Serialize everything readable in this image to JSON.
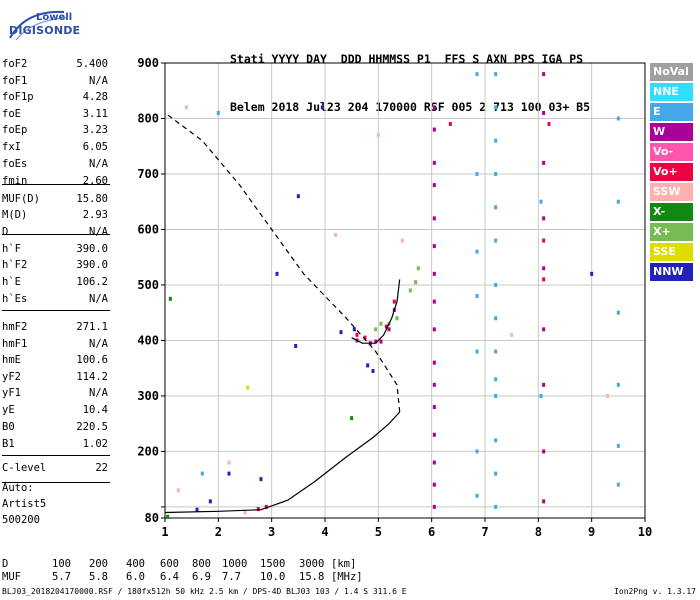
{
  "logo": {
    "line1": "Lowell",
    "line2": "DIGISONDE"
  },
  "header": {
    "line1": "Stati YYYY DAY  DDD HHMMSS P1  FFS S AXN PPS IGA PS",
    "line2": "Belem 2018 Jul23 204 170000 RSF 005 2 713 100 03+ B5"
  },
  "params": [
    {
      "name": "foF2",
      "value": "5.400"
    },
    {
      "name": "foF1",
      "value": "N/A"
    },
    {
      "name": "foF1p",
      "value": "4.28"
    },
    {
      "name": "foE",
      "value": "3.11"
    },
    {
      "name": "foEp",
      "value": "3.23"
    },
    {
      "name": "fxI",
      "value": "6.05"
    },
    {
      "name": "foEs",
      "value": "N/A"
    },
    {
      "name": "fmin",
      "value": "2.60"
    },
    {
      "name": "MUF(D)",
      "value": "15.80"
    },
    {
      "name": "M(D)",
      "value": "2.93"
    },
    {
      "name": "D",
      "value": "N/A"
    },
    {
      "name": "h`F",
      "value": "390.0"
    },
    {
      "name": "h`F2",
      "value": "390.0"
    },
    {
      "name": "h`E",
      "value": "106.2"
    },
    {
      "name": "h`Es",
      "value": "N/A"
    },
    {
      "name": "hmF2",
      "value": "271.1"
    },
    {
      "name": "hmF1",
      "value": "N/A"
    },
    {
      "name": "hmE",
      "value": "100.6"
    },
    {
      "name": "yF2",
      "value": "114.2"
    },
    {
      "name": "yF1",
      "value": "N/A"
    },
    {
      "name": "yE",
      "value": "10.4"
    },
    {
      "name": "B0",
      "value": "220.5"
    },
    {
      "name": "B1",
      "value": "1.02"
    },
    {
      "name": "C-level",
      "value": "22"
    }
  ],
  "auto": {
    "line1": "Auto:",
    "line2": "Artist5",
    "line3": "500200"
  },
  "muf_table": {
    "d_label": "D",
    "d_values": [
      "100",
      "200",
      "400",
      "600",
      "800",
      "1000",
      "1500",
      "3000"
    ],
    "d_unit": "[km]",
    "muf_label": "MUF",
    "muf_values": [
      "5.7",
      "5.8",
      "6.0",
      "6.4",
      "6.9",
      "7.7",
      "10.0",
      "15.8"
    ],
    "muf_unit": "[MHz]"
  },
  "footer": {
    "left": "BLJ03_2018204170000.RSF / 180fx512h 50 kHz 2.5 km / DPS-4D BLJ03 103 / 1.4 S 311.6 E",
    "right": "Ion2Png v. 1.3.17"
  },
  "legend": [
    {
      "label": "NoVal",
      "color": "#a0a0a0"
    },
    {
      "label": "NNE",
      "color": "#33ddff"
    },
    {
      "label": "E",
      "color": "#44a8e8"
    },
    {
      "label": "W",
      "color": "#aa0099"
    },
    {
      "label": "Vo-",
      "color": "#ff55aa"
    },
    {
      "label": "Vo+",
      "color": "#ee0044"
    },
    {
      "label": "SSW",
      "color": "#ffb0b0"
    },
    {
      "label": "X-",
      "color": "#118811"
    },
    {
      "label": "X+",
      "color": "#77bb55"
    },
    {
      "label": "SSE",
      "color": "#dddd00"
    },
    {
      "label": "NNW",
      "color": "#2222bb"
    }
  ],
  "chart_data": {
    "type": "scatter",
    "title": "",
    "xlabel": "",
    "ylabel": "",
    "xlim": [
      1,
      10
    ],
    "ylim": [
      80,
      900
    ],
    "x_ticks": [
      1,
      2,
      3,
      4,
      5,
      6,
      7,
      8,
      9,
      10
    ],
    "y_ticks": [
      80,
      100,
      200,
      300,
      400,
      500,
      600,
      700,
      800,
      900
    ],
    "y_tick_labels": [
      "80",
      "",
      "200",
      "300",
      "400",
      "500",
      "600",
      "700",
      "800",
      "900"
    ],
    "grid": true,
    "profile_solid": [
      [
        1.0,
        90
      ],
      [
        2.0,
        92
      ],
      [
        2.8,
        95
      ],
      [
        3.3,
        112
      ],
      [
        3.8,
        145
      ],
      [
        4.4,
        190
      ],
      [
        4.9,
        225
      ],
      [
        5.2,
        250
      ],
      [
        5.4,
        271
      ]
    ],
    "profile_dashed": [
      [
        5.4,
        271
      ],
      [
        5.35,
        320
      ],
      [
        4.95,
        380
      ],
      [
        4.4,
        440
      ],
      [
        3.6,
        520
      ],
      [
        3.0,
        600
      ],
      [
        2.4,
        680
      ],
      [
        1.7,
        760
      ],
      [
        1.0,
        810
      ]
    ],
    "trace_o": [
      [
        4.5,
        405
      ],
      [
        4.7,
        395
      ],
      [
        4.95,
        395
      ],
      [
        5.1,
        410
      ],
      [
        5.25,
        440
      ],
      [
        5.35,
        470
      ],
      [
        5.4,
        510
      ]
    ],
    "series": [
      {
        "color": "#aa0099",
        "points": [
          [
            6.05,
            100
          ],
          [
            6.05,
            140
          ],
          [
            6.05,
            180
          ],
          [
            6.05,
            230
          ],
          [
            6.05,
            280
          ],
          [
            6.05,
            320
          ],
          [
            6.05,
            360
          ],
          [
            6.05,
            420
          ],
          [
            6.05,
            470
          ],
          [
            6.05,
            520
          ],
          [
            6.05,
            570
          ],
          [
            6.05,
            620
          ],
          [
            6.05,
            680
          ],
          [
            6.05,
            720
          ],
          [
            6.05,
            780
          ],
          [
            6.05,
            820
          ],
          [
            8.1,
            110
          ],
          [
            8.1,
            200
          ],
          [
            8.1,
            320
          ],
          [
            8.1,
            420
          ],
          [
            8.1,
            530
          ],
          [
            8.1,
            620
          ],
          [
            8.1,
            720
          ],
          [
            8.1,
            810
          ],
          [
            8.1,
            880
          ],
          [
            4.6,
            400
          ],
          [
            4.85,
            395
          ],
          [
            5.05,
            398
          ],
          [
            5.2,
            420
          ],
          [
            5.3,
            455
          ]
        ]
      },
      {
        "color": "#44a8e8",
        "points": [
          [
            7.2,
            100
          ],
          [
            7.2,
            160
          ],
          [
            7.2,
            220
          ],
          [
            7.2,
            300
          ],
          [
            7.2,
            330
          ],
          [
            7.2,
            380
          ],
          [
            7.2,
            440
          ],
          [
            7.2,
            500
          ],
          [
            7.2,
            580
          ],
          [
            7.2,
            640
          ],
          [
            7.2,
            700
          ],
          [
            7.2,
            760
          ],
          [
            7.2,
            820
          ],
          [
            7.2,
            880
          ],
          [
            6.85,
            120
          ],
          [
            6.85,
            200
          ],
          [
            6.85,
            380
          ],
          [
            6.85,
            480
          ],
          [
            6.85,
            560
          ],
          [
            6.85,
            700
          ],
          [
            6.85,
            880
          ],
          [
            9.5,
            140
          ],
          [
            9.5,
            210
          ],
          [
            9.5,
            320
          ],
          [
            9.5,
            450
          ],
          [
            9.5,
            650
          ],
          [
            9.5,
            800
          ],
          [
            1.7,
            160
          ],
          [
            2.0,
            810
          ],
          [
            8.05,
            300
          ],
          [
            8.05,
            650
          ]
        ]
      },
      {
        "color": "#2222bb",
        "points": [
          [
            1.6,
            95
          ],
          [
            1.85,
            110
          ],
          [
            2.2,
            160
          ],
          [
            3.45,
            390
          ],
          [
            3.95,
            820
          ],
          [
            4.3,
            415
          ],
          [
            4.55,
            420
          ],
          [
            4.8,
            355
          ],
          [
            4.9,
            345
          ],
          [
            3.1,
            520
          ],
          [
            2.8,
            150
          ],
          [
            9.0,
            520
          ],
          [
            3.5,
            660
          ]
        ]
      },
      {
        "color": "#ee0044",
        "points": [
          [
            2.75,
            96
          ],
          [
            2.9,
            100
          ],
          [
            4.6,
            410
          ],
          [
            4.75,
            405
          ],
          [
            4.95,
            398
          ],
          [
            5.15,
            425
          ],
          [
            5.3,
            470
          ],
          [
            8.1,
            580
          ],
          [
            8.2,
            790
          ],
          [
            6.35,
            790
          ],
          [
            8.1,
            510
          ]
        ]
      },
      {
        "color": "#77bb55",
        "points": [
          [
            4.95,
            420
          ],
          [
            5.05,
            430
          ],
          [
            5.2,
            430
          ],
          [
            5.35,
            440
          ],
          [
            5.6,
            490
          ],
          [
            5.7,
            505
          ],
          [
            5.75,
            530
          ]
        ]
      },
      {
        "color": "#ffb0b0",
        "points": [
          [
            1.25,
            130
          ],
          [
            2.2,
            180
          ],
          [
            2.5,
            90
          ],
          [
            4.2,
            590
          ],
          [
            5.0,
            770
          ],
          [
            5.45,
            580
          ],
          [
            7.5,
            410
          ],
          [
            9.3,
            300
          ],
          [
            1.4,
            820
          ]
        ]
      },
      {
        "color": "#118811",
        "points": [
          [
            1.05,
            82
          ],
          [
            1.1,
            475
          ],
          [
            4.5,
            260
          ]
        ]
      },
      {
        "color": "#dddd00",
        "points": [
          [
            2.55,
            315
          ]
        ]
      }
    ]
  }
}
